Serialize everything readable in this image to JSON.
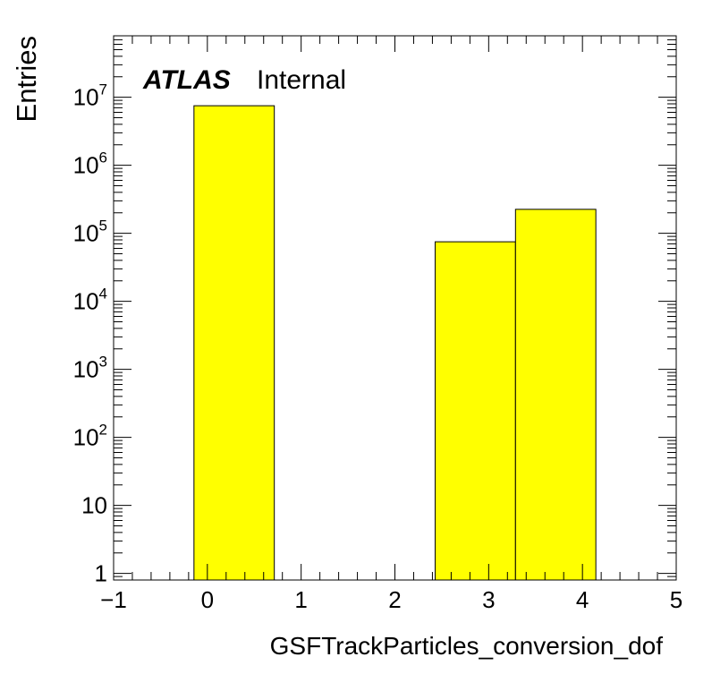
{
  "chart_data": {
    "type": "bar",
    "xlabel": "GSFTrackParticles_conversion_dof",
    "ylabel": "Entries",
    "annotation": {
      "bold": "ATLAS",
      "normal": "Internal"
    },
    "xlim": [
      -1,
      5
    ],
    "ylim": [
      0.8,
      80000000
    ],
    "yscale": "log",
    "bar_color": "#ffff00",
    "xtick_labels": [
      "−1",
      "0",
      "1",
      "2",
      "3",
      "4",
      "5"
    ],
    "xtick_values": [
      -1,
      0,
      1,
      2,
      3,
      4,
      5
    ],
    "ytick_values": [
      1,
      10,
      100,
      1000,
      10000,
      100000,
      1000000,
      10000000
    ],
    "ytick_labels": [
      {
        "base": "1",
        "exp": ""
      },
      {
        "base": "10",
        "exp": ""
      },
      {
        "base": "10",
        "exp": "2"
      },
      {
        "base": "10",
        "exp": "3"
      },
      {
        "base": "10",
        "exp": "4"
      },
      {
        "base": "10",
        "exp": "5"
      },
      {
        "base": "10",
        "exp": "6"
      },
      {
        "base": "10",
        "exp": "7"
      }
    ],
    "bins": [
      {
        "x_low": -0.143,
        "x_high": 0.714,
        "value": 7500000
      },
      {
        "x_low": 2.429,
        "x_high": 3.286,
        "value": 75000
      },
      {
        "x_low": 3.286,
        "x_high": 4.143,
        "value": 225000
      }
    ]
  }
}
